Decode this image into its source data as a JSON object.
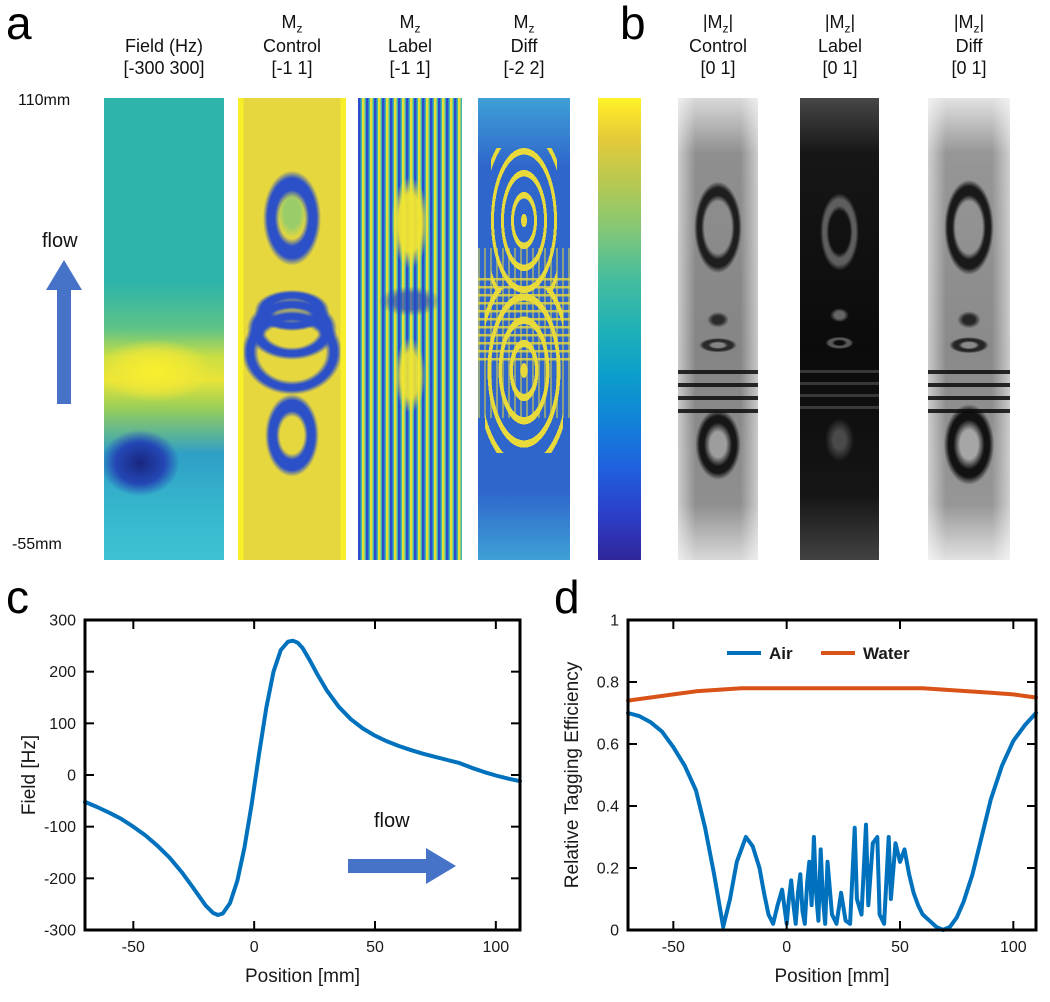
{
  "colors": {
    "arrow": "#4673C8",
    "air_series": "#0072BD",
    "water_series": "#D95319",
    "axis": "#1a1a1a"
  },
  "panels": {
    "a": {
      "label": "a",
      "y_top_label": "110mm",
      "y_bottom_label": "-55mm",
      "flow_label": "flow",
      "columns": [
        {
          "title_line1": "Field (Hz)",
          "title_line2": "[-300 300]"
        },
        {
          "title_pre": "M",
          "title_sub": "z",
          "title_post": "",
          "title_name": "Control",
          "title_range": "[-1 1]"
        },
        {
          "title_pre": "M",
          "title_sub": "z",
          "title_post": "",
          "title_name": "Label",
          "title_range": "[-1 1]"
        },
        {
          "title_pre": "M",
          "title_sub": "z",
          "title_post": "",
          "title_name": "Diff",
          "title_range": "[-2 2]"
        }
      ]
    },
    "b": {
      "label": "b",
      "columns": [
        {
          "title_pre": "|M",
          "title_sub": "z",
          "title_post": "|",
          "title_name": "Control",
          "title_range": "[0 1]"
        },
        {
          "title_pre": "|M",
          "title_sub": "z",
          "title_post": "|",
          "title_name": "Label",
          "title_range": "[0 1]"
        },
        {
          "title_pre": "|M",
          "title_sub": "z",
          "title_post": "|",
          "title_name": "Diff",
          "title_range": "[0 1]"
        }
      ]
    },
    "c": {
      "label": "c",
      "flow_label": "flow"
    },
    "d": {
      "label": "d"
    }
  },
  "chart_data": [
    {
      "id": "chart-c",
      "type": "line",
      "title": "",
      "xlabel": "Position [mm]",
      "ylabel": "Field [Hz]",
      "xlim": [
        -70,
        110
      ],
      "ylim": [
        -300,
        300
      ],
      "xticks": [
        -50,
        0,
        50,
        100
      ],
      "yticks": [
        -300,
        -200,
        -100,
        0,
        100,
        200,
        300
      ],
      "grid": false,
      "annotation": "flow",
      "series": [
        {
          "name": "Field",
          "color": "#0072BD",
          "x": [
            -70,
            -65,
            -60,
            -55,
            -50,
            -45,
            -40,
            -35,
            -30,
            -25,
            -20,
            -17,
            -15,
            -13,
            -10,
            -7,
            -4,
            -1,
            2,
            5,
            8,
            11,
            14,
            16,
            18,
            20,
            23,
            26,
            30,
            35,
            40,
            45,
            50,
            55,
            60,
            65,
            70,
            75,
            80,
            85,
            90,
            95,
            100,
            105,
            110
          ],
          "y": [
            -52,
            -62,
            -73,
            -85,
            -100,
            -117,
            -137,
            -160,
            -188,
            -220,
            -253,
            -267,
            -271,
            -268,
            -248,
            -205,
            -140,
            -55,
            40,
            130,
            200,
            242,
            258,
            260,
            256,
            246,
            222,
            196,
            164,
            132,
            108,
            90,
            76,
            65,
            56,
            48,
            41,
            35,
            29,
            23,
            14,
            6,
            -1,
            -7,
            -12
          ]
        }
      ]
    },
    {
      "id": "chart-d",
      "type": "line",
      "title": "",
      "xlabel": "Position [mm]",
      "ylabel": "Relative Tagging Efficiency",
      "xlim": [
        -70,
        110
      ],
      "ylim": [
        0,
        1
      ],
      "xticks": [
        -50,
        0,
        50,
        100
      ],
      "yticks": [
        0,
        0.2,
        0.4,
        0.6,
        0.8,
        1
      ],
      "grid": false,
      "legend": {
        "position": "top-center",
        "entries": [
          "Air",
          "Water"
        ]
      },
      "series": [
        {
          "name": "Air",
          "color": "#0072BD",
          "x": [
            -70,
            -65,
            -60,
            -55,
            -50,
            -45,
            -40,
            -36,
            -32,
            -28,
            -25,
            -22,
            -18,
            -15,
            -12,
            -10,
            -8,
            -6,
            -4,
            -2,
            0,
            1,
            2,
            3,
            4,
            5,
            6,
            7,
            8,
            9,
            10,
            11,
            12,
            13,
            14,
            15,
            16,
            17,
            18,
            20,
            22,
            24,
            26,
            28,
            30,
            31,
            33,
            35,
            36,
            38,
            40,
            41,
            43,
            45,
            46,
            48,
            50,
            52,
            54,
            56,
            58,
            60,
            63,
            66,
            69,
            72,
            75,
            78,
            82,
            86,
            90,
            95,
            100,
            105,
            110
          ],
          "y": [
            0.7,
            0.69,
            0.67,
            0.64,
            0.59,
            0.53,
            0.45,
            0.33,
            0.18,
            0.01,
            0.1,
            0.22,
            0.3,
            0.27,
            0.2,
            0.12,
            0.05,
            0.02,
            0.08,
            0.13,
            0.02,
            0.1,
            0.16,
            0.08,
            0.02,
            0.12,
            0.18,
            0.06,
            0.02,
            0.15,
            0.22,
            0.08,
            0.3,
            0.12,
            0.03,
            0.26,
            0.1,
            0.02,
            0.22,
            0.05,
            0.02,
            0.12,
            0.03,
            0.02,
            0.33,
            0.1,
            0.05,
            0.34,
            0.08,
            0.28,
            0.3,
            0.05,
            0.02,
            0.3,
            0.1,
            0.28,
            0.22,
            0.26,
            0.18,
            0.12,
            0.08,
            0.05,
            0.03,
            0.01,
            0.0,
            0.01,
            0.04,
            0.09,
            0.18,
            0.3,
            0.42,
            0.53,
            0.61,
            0.66,
            0.7
          ]
        },
        {
          "name": "Water",
          "color": "#D95319",
          "x": [
            -70,
            -60,
            -50,
            -40,
            -30,
            -20,
            -10,
            0,
            10,
            20,
            30,
            40,
            50,
            60,
            70,
            80,
            90,
            100,
            105,
            110
          ],
          "y": [
            0.74,
            0.75,
            0.76,
            0.77,
            0.775,
            0.78,
            0.78,
            0.78,
            0.78,
            0.78,
            0.78,
            0.78,
            0.78,
            0.78,
            0.775,
            0.77,
            0.765,
            0.76,
            0.755,
            0.75
          ]
        }
      ]
    }
  ]
}
